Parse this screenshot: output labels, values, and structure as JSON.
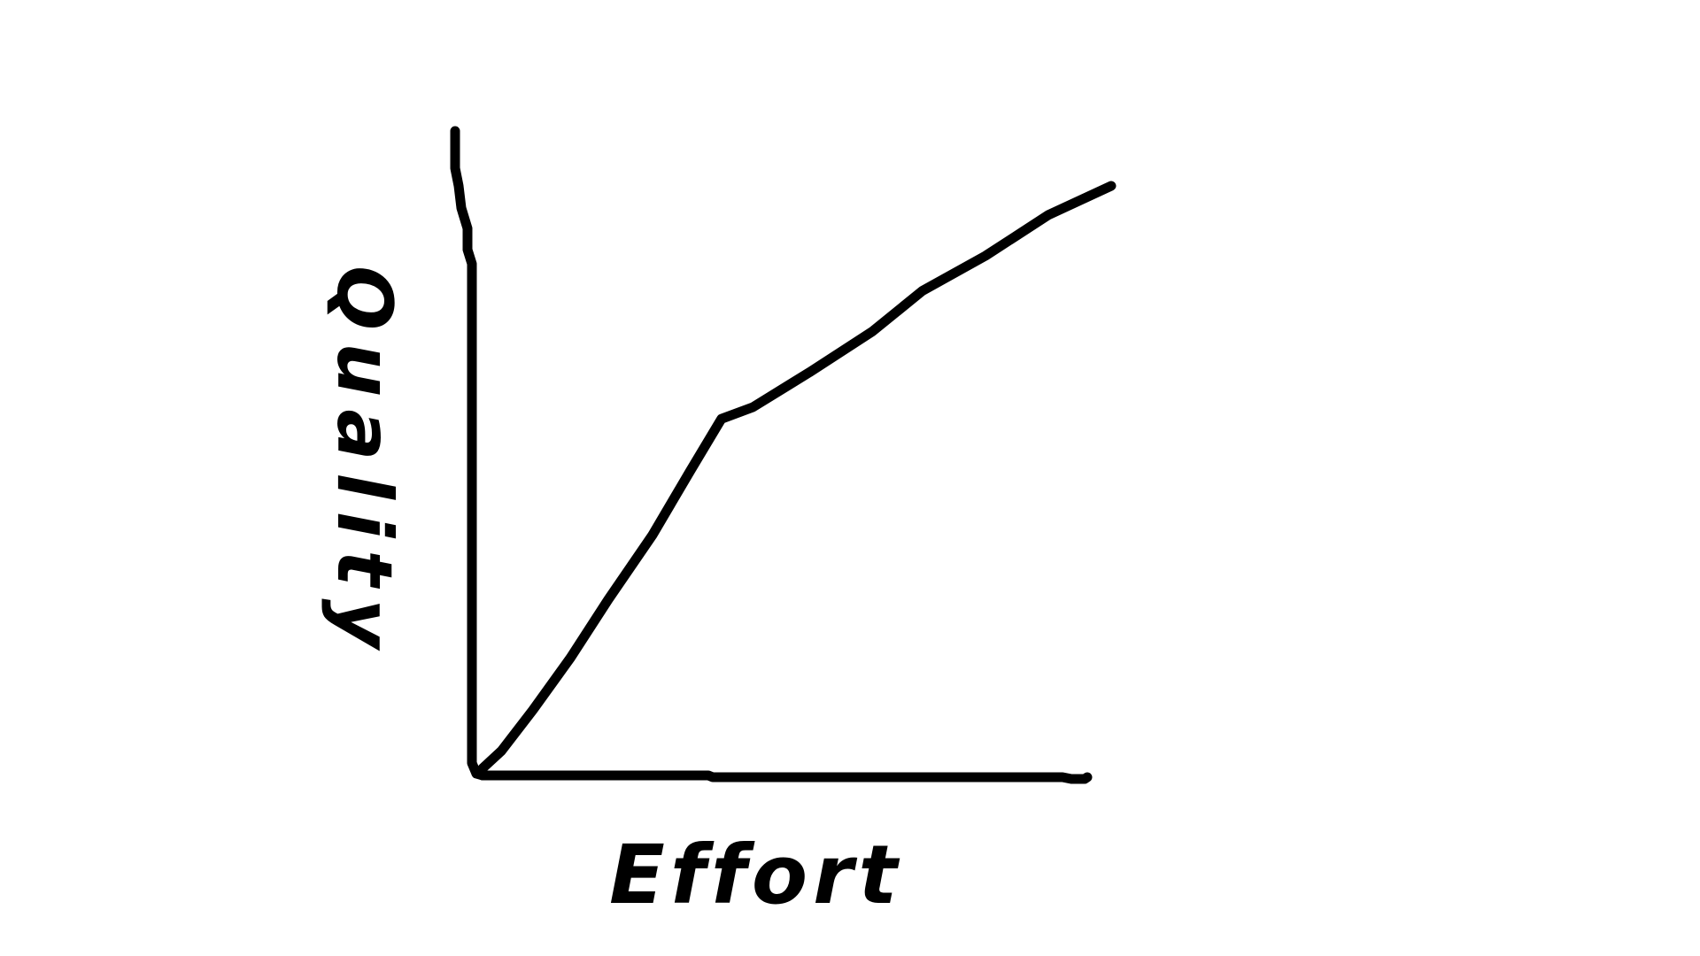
{
  "chart_data": {
    "type": "line",
    "title": "",
    "xlabel": "Effort",
    "ylabel": "Quality",
    "grid": false,
    "axis_ticks": false,
    "series": [
      {
        "x": [
          0,
          0.03,
          0.08,
          0.14,
          0.2,
          0.27,
          0.33,
          0.38,
          0.43,
          0.52,
          0.62,
          0.7,
          0.8,
          0.9,
          1.0
        ],
        "values": [
          0,
          0.03,
          0.1,
          0.19,
          0.29,
          0.4,
          0.51,
          0.6,
          0.62,
          0.68,
          0.75,
          0.82,
          0.88,
          0.95,
          1.0
        ]
      }
    ],
    "xlim": [
      0,
      1
    ],
    "ylim": [
      0,
      1
    ],
    "line_color": "#000000",
    "background": "#ffffff"
  }
}
